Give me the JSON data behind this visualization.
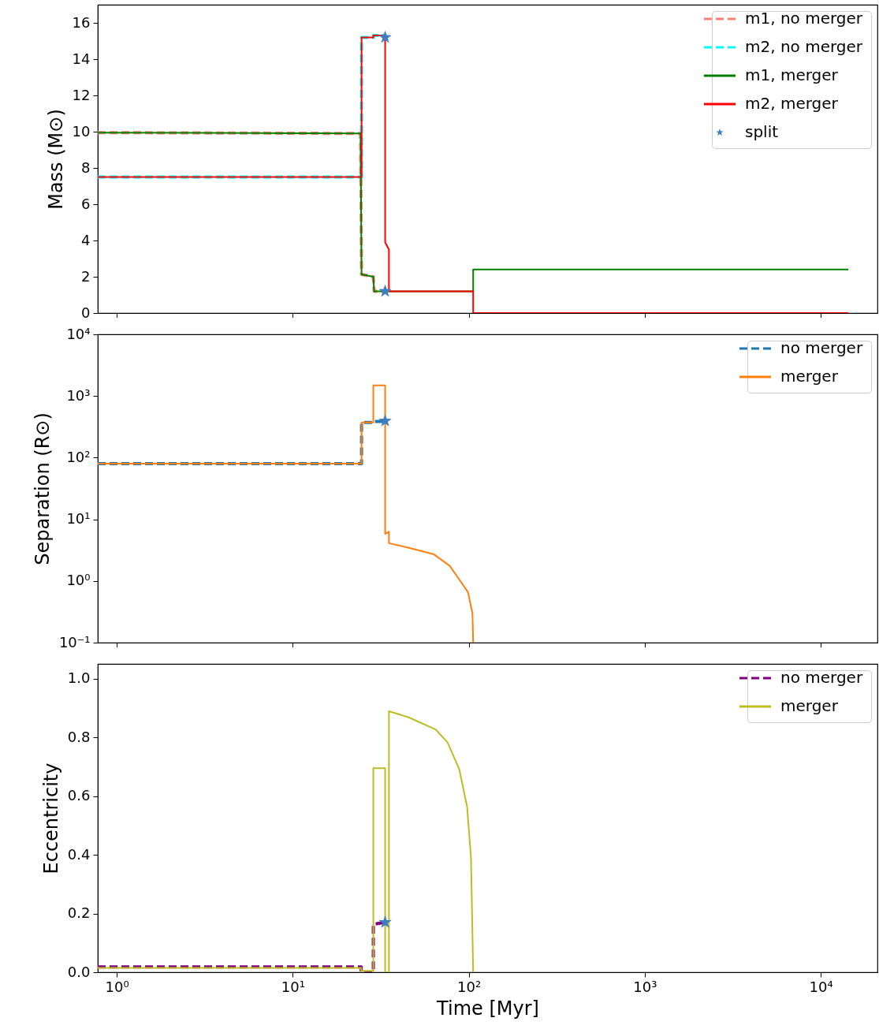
{
  "chart_data": [
    {
      "type": "line",
      "ylabel": "Mass (M⊙)",
      "xlim": [
        0.78,
        21000
      ],
      "ylim": [
        0,
        17
      ],
      "log": "x",
      "legend": "top right",
      "tick_labels": "y",
      "xticks": [
        {
          "value": 1,
          "label": null
        },
        {
          "value": 10,
          "label": null
        },
        {
          "value": 100,
          "label": null
        },
        {
          "value": 1000,
          "label": null
        },
        {
          "value": 10000,
          "label": null
        }
      ],
      "yticks": [
        0,
        2,
        4,
        6,
        8,
        10,
        12,
        14,
        16
      ],
      "series": [
        {
          "name": "m1, no merger",
          "color": "#fa8072",
          "line_style": "dashed",
          "x": [
            0.78,
            24.3,
            24.6,
            28.7,
            29.0,
            33.5
          ],
          "values": [
            9.95,
            9.9,
            2.13,
            2.0,
            1.2,
            1.2
          ]
        },
        {
          "name": "m2, no merger",
          "color": "#00ffff",
          "line_style": "dashed",
          "x": [
            0.78,
            24.6,
            24.6,
            28.7,
            28.7,
            33.5
          ],
          "values": [
            7.5,
            7.5,
            15.2,
            15.2,
            15.3,
            15.3
          ]
        },
        {
          "name": "m1, merger",
          "color": "#008000",
          "line_style": "solid",
          "x": [
            0.78,
            24.3,
            24.6,
            28.7,
            29.0,
            106,
            106,
            14350
          ],
          "values": [
            9.95,
            9.9,
            2.13,
            2.0,
            1.2,
            1.2,
            2.4,
            2.4
          ]
        },
        {
          "name": "m2, merger",
          "color": "#ff0000",
          "line_style": "solid",
          "x": [
            0.78,
            24.6,
            24.6,
            28.7,
            28.7,
            33.5,
            33.5,
            35.2,
            35.2,
            106,
            106,
            14350
          ],
          "values": [
            7.5,
            7.5,
            15.2,
            15.2,
            15.3,
            15.3,
            3.9,
            3.5,
            1.2,
            1.2,
            0,
            0
          ]
        },
        {
          "name": "split",
          "type": "scatter",
          "marker": "star",
          "color": "#3d7ebf",
          "x": [
            33.5,
            33.5
          ],
          "values": [
            15.2,
            1.2
          ]
        }
      ]
    },
    {
      "type": "line",
      "ylabel": "Separation (R⊙)",
      "xlim": [
        0.78,
        21000
      ],
      "ylim": [
        0.1,
        10000
      ],
      "log": "xy",
      "legend": "top right",
      "tick_labels": "y",
      "xticks": [
        {
          "value": 1,
          "label": null
        },
        {
          "value": 10,
          "label": null
        },
        {
          "value": 100,
          "label": null
        },
        {
          "value": 1000,
          "label": null
        },
        {
          "value": 10000,
          "label": null
        }
      ],
      "yticks": [
        {
          "value": 0.1,
          "label": "10⁻¹"
        },
        {
          "value": 1,
          "label": "10⁰"
        },
        {
          "value": 10,
          "label": "10¹"
        },
        {
          "value": 100,
          "label": "10²"
        },
        {
          "value": 1000,
          "label": "10³"
        },
        {
          "value": 10000,
          "label": "10⁴"
        }
      ],
      "series": [
        {
          "name": "no merger",
          "color": "#1f77b4",
          "line_style": "dashed",
          "x": [
            0.78,
            24.6,
            24.6,
            28.7,
            28.7,
            33.5
          ],
          "values": [
            80,
            80,
            372,
            372,
            385,
            385
          ]
        },
        {
          "name": "merger",
          "color": "#ff7f0e",
          "line_style": "solid",
          "x": [
            0.78,
            24.6,
            24.6,
            28.7,
            28.7,
            33.5,
            33.5,
            35.2,
            35.2,
            46.6,
            63.5,
            78,
            86.5,
            99,
            105,
            106
          ],
          "values": [
            80,
            80,
            372,
            372,
            1490,
            1490,
            5.8,
            6.3,
            4.1,
            3.4,
            2.7,
            1.76,
            1.15,
            0.66,
            0.3,
            0.1
          ]
        },
        {
          "type": "scatter",
          "marker": "star",
          "color": "#3d7ebf",
          "x": [
            33.5
          ],
          "values": [
            394
          ]
        }
      ]
    },
    {
      "type": "line",
      "ylabel": "Eccentricity",
      "xlabel": "Time [Myr]",
      "xlim": [
        0.78,
        21000
      ],
      "ylim": [
        0,
        1.05
      ],
      "log": "x",
      "legend": "top right",
      "xticks": [
        {
          "value": 1,
          "label": "10⁰"
        },
        {
          "value": 10,
          "label": "10¹"
        },
        {
          "value": 100,
          "label": "10²"
        },
        {
          "value": 1000,
          "label": "10³"
        },
        {
          "value": 10000,
          "label": "10⁴"
        }
      ],
      "yticks": [
        {
          "value": 0,
          "label": "0.0"
        },
        0.2,
        0.4,
        0.6,
        0.8,
        {
          "value": 1,
          "label": "1.0"
        }
      ],
      "series": [
        {
          "name": "no merger",
          "color": "#800080",
          "line_style": "dashed",
          "x": [
            0.78,
            24.5,
            24.5,
            28.7,
            28.7,
            33.5
          ],
          "values": [
            0.018,
            0.018,
            0.0,
            0.0,
            0.163,
            0.17
          ]
        },
        {
          "name": "merger",
          "color": "#bcbd22",
          "line_style": "solid",
          "x": [
            0.78,
            24.5,
            24.5,
            28.7,
            28.7,
            33.5,
            33.5,
            35.2,
            35.2,
            45.6,
            64.8,
            75.7,
            88.3,
            97.9,
            103,
            106
          ],
          "values": [
            0.015,
            0.015,
            0.005,
            0.005,
            0.695,
            0.695,
            0,
            0,
            0.889,
            0.868,
            0.827,
            0.783,
            0.692,
            0.563,
            0.39,
            0
          ]
        },
        {
          "type": "scatter",
          "marker": "star",
          "color": "#3d7ebf",
          "x": [
            33.5
          ],
          "values": [
            0.17
          ]
        }
      ]
    }
  ]
}
